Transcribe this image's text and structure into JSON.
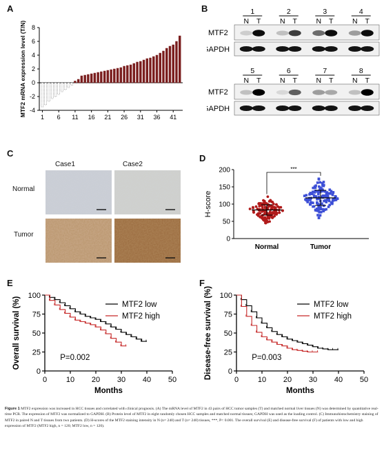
{
  "panels": {
    "A": {
      "label": "A"
    },
    "B": {
      "label": "B"
    },
    "C": {
      "label": "C"
    },
    "D": {
      "label": "D"
    },
    "E": {
      "label": "E"
    },
    "F": {
      "label": "F"
    }
  },
  "panel_B": {
    "lanes_top": [
      "1",
      "2",
      "3",
      "4"
    ],
    "lanes_bottom": [
      "5",
      "6",
      "7",
      "8"
    ],
    "n_label": "N",
    "t_label": "T",
    "row_labels": [
      "MTF2",
      "GAPDH"
    ]
  },
  "panel_C": {
    "col_headers": [
      "Case1",
      "Case2"
    ],
    "row_headers": [
      "Normal",
      "Tumor"
    ]
  },
  "caption": {
    "title": "Figure 1",
    "text": "MTF2 expression was increased in HCC tissues and correlated with clinical prognosis. (A) The mRNA level of MTF2 in 43 pairs of HCC tumor samples (T) and matched normal liver tissues (N) was determined by quantitative real-time PCR. The expression of MTF2 was normalized to GAPDH. (B) Protein level of MTF2 in eight randomly chosen HCC samples and matched normal tissues; GAPDH was used as the loading control. (C) Immunohistochemistry staining of MTF2 in paired N and T tissues from two patients. (D) H-scores of the MTF2 staining intensity in N (n= 240) and T (n= 240) tissues, ***, P< 0.001. The overall survival (E) and disease-free survival (F) of patients with low and high expression of MTF2 (MTF2 high, n = 120; MTF2 low, n = 120)."
  },
  "chart_data": [
    {
      "id": "A",
      "type": "bar",
      "ylabel": "MTF2 mRNA  expression level (T/N)",
      "ylim": [
        -4,
        8
      ],
      "yticks": [
        -4,
        -2,
        0,
        2,
        4,
        6,
        8
      ],
      "xtick_labels": [
        "1",
        "6",
        "11",
        "16",
        "21",
        "26",
        "31",
        "36",
        "41"
      ],
      "values": [
        -3.5,
        -3.2,
        -2.7,
        -2.3,
        -2.0,
        -1.7,
        -1.3,
        -1.0,
        -0.7,
        -0.35,
        0.25,
        0.5,
        1.0,
        1.1,
        1.2,
        1.3,
        1.4,
        1.5,
        1.6,
        1.7,
        1.8,
        1.9,
        2.0,
        2.1,
        2.2,
        2.4,
        2.5,
        2.6,
        2.8,
        3.0,
        3.1,
        3.3,
        3.5,
        3.6,
        3.8,
        4.0,
        4.3,
        4.6,
        5.0,
        5.3,
        5.5,
        6.0,
        6.8
      ],
      "colors": {
        "negative": "#555555",
        "positive": "#7a1e1e"
      }
    },
    {
      "id": "D",
      "type": "scatter",
      "ylabel": "H-score",
      "ylim": [
        0,
        200
      ],
      "yticks": [
        0,
        50,
        100,
        150,
        200
      ],
      "categories": [
        "Normal",
        "Tumor"
      ],
      "significance": "***",
      "series": [
        {
          "name": "Normal",
          "mean": 83,
          "sd": 15,
          "min": 37,
          "max": 125,
          "color": "#b01a1a"
        },
        {
          "name": "Tumor",
          "mean": 118,
          "sd": 22,
          "min": 60,
          "max": 178,
          "color": "#3d4fd6"
        }
      ]
    },
    {
      "id": "E",
      "type": "line",
      "xlabel": "Months",
      "ylabel": "Overall survival (%)",
      "xlim": [
        0,
        50
      ],
      "ylim": [
        0,
        100
      ],
      "xticks": [
        0,
        10,
        20,
        30,
        40,
        50
      ],
      "yticks": [
        0,
        25,
        50,
        75,
        100
      ],
      "annotation": "P=0.002",
      "series": [
        {
          "name": "MTF2 low",
          "color": "#000000",
          "x": [
            0,
            2,
            4,
            6,
            8,
            10,
            12,
            14,
            16,
            18,
            20,
            22,
            24,
            26,
            28,
            30,
            32,
            34,
            36,
            38,
            40
          ],
          "y": [
            100,
            97,
            94,
            90,
            86,
            82,
            78,
            75,
            72,
            70,
            68,
            65,
            62,
            58,
            55,
            51,
            48,
            45,
            42,
            39,
            39
          ]
        },
        {
          "name": "MTF2 high",
          "color": "#c62828",
          "x": [
            0,
            2,
            4,
            6,
            8,
            10,
            12,
            14,
            16,
            18,
            20,
            22,
            24,
            26,
            28,
            30,
            32
          ],
          "y": [
            100,
            93,
            87,
            81,
            76,
            71,
            67,
            65,
            63,
            61,
            58,
            54,
            49,
            43,
            38,
            33,
            33
          ]
        }
      ]
    },
    {
      "id": "F",
      "type": "line",
      "xlabel": "Months",
      "ylabel": "Disease-free survival (%)",
      "xlim": [
        0,
        50
      ],
      "ylim": [
        0,
        100
      ],
      "xticks": [
        0,
        10,
        20,
        30,
        40,
        50
      ],
      "yticks": [
        0,
        25,
        50,
        75,
        100
      ],
      "annotation": "P=0.003",
      "series": [
        {
          "name": "MTF2 low",
          "color": "#000000",
          "x": [
            0,
            2,
            4,
            6,
            8,
            10,
            12,
            14,
            16,
            18,
            20,
            22,
            24,
            26,
            28,
            30,
            32,
            34,
            36,
            38,
            40
          ],
          "y": [
            100,
            94,
            86,
            78,
            70,
            63,
            57,
            52,
            48,
            45,
            42,
            40,
            38,
            36,
            34,
            32,
            30,
            29,
            28,
            28,
            28
          ]
        },
        {
          "name": "MTF2 high",
          "color": "#c62828",
          "x": [
            0,
            2,
            4,
            6,
            8,
            10,
            12,
            14,
            16,
            18,
            20,
            22,
            24,
            26,
            28,
            30,
            32
          ],
          "y": [
            100,
            85,
            72,
            60,
            51,
            45,
            41,
            38,
            35,
            33,
            30,
            28,
            27,
            26,
            25,
            25,
            25
          ]
        }
      ]
    }
  ]
}
